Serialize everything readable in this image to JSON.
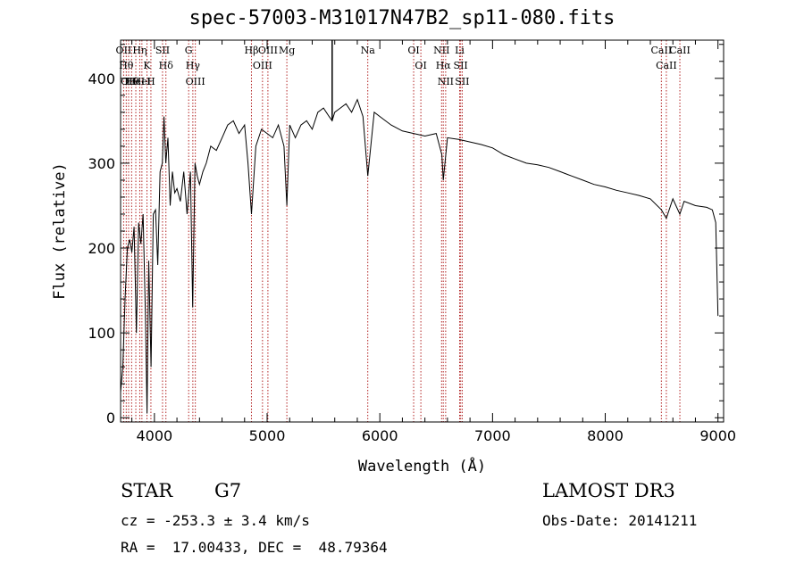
{
  "chart_data": {
    "type": "line",
    "title": "spec-57003-M31017N47B2_sp11-080.fits",
    "xlabel": "Wavelength (Å)",
    "ylabel": "Flux (relative)",
    "xlim": [
      3700,
      9050
    ],
    "ylim": [
      -5,
      445
    ],
    "xticks": [
      4000,
      5000,
      6000,
      7000,
      8000,
      9000
    ],
    "yticks": [
      0,
      100,
      200,
      300,
      400
    ],
    "series": [
      {
        "name": "flux",
        "x": [
          3700,
          3720,
          3740,
          3760,
          3780,
          3800,
          3820,
          3840,
          3860,
          3880,
          3900,
          3920,
          3935,
          3950,
          3970,
          3990,
          4010,
          4030,
          4050,
          4070,
          4085,
          4101,
          4120,
          4140,
          4160,
          4180,
          4200,
          4230,
          4260,
          4290,
          4320,
          4340,
          4360,
          4380,
          4400,
          4430,
          4460,
          4500,
          4550,
          4600,
          4650,
          4700,
          4750,
          4800,
          4830,
          4861,
          4900,
          4950,
          5000,
          5050,
          5100,
          5150,
          5175,
          5200,
          5250,
          5300,
          5350,
          5400,
          5450,
          5500,
          5550,
          5577,
          5600,
          5650,
          5700,
          5750,
          5800,
          5850,
          5893,
          5950,
          6000,
          6050,
          6100,
          6200,
          6300,
          6400,
          6500,
          6550,
          6563,
          6600,
          6700,
          6800,
          6900,
          7000,
          7100,
          7200,
          7300,
          7400,
          7500,
          7600,
          7700,
          7800,
          7900,
          8000,
          8100,
          8200,
          8300,
          8400,
          8498,
          8542,
          8600,
          8662,
          8700,
          8800,
          8900,
          8950,
          8980,
          9000
        ],
        "values": [
          30,
          60,
          140,
          200,
          210,
          195,
          225,
          100,
          230,
          205,
          240,
          120,
          5,
          185,
          60,
          240,
          245,
          180,
          290,
          300,
          355,
          300,
          330,
          250,
          290,
          265,
          270,
          255,
          290,
          240,
          290,
          130,
          300,
          285,
          275,
          290,
          300,
          320,
          315,
          330,
          345,
          350,
          335,
          345,
          300,
          240,
          320,
          340,
          335,
          330,
          345,
          320,
          250,
          345,
          330,
          345,
          350,
          340,
          360,
          365,
          355,
          350,
          360,
          365,
          370,
          360,
          375,
          355,
          285,
          360,
          355,
          350,
          345,
          338,
          335,
          332,
          335,
          310,
          280,
          330,
          328,
          325,
          322,
          318,
          310,
          305,
          300,
          298,
          295,
          290,
          285,
          280,
          275,
          272,
          268,
          265,
          262,
          258,
          245,
          235,
          258,
          240,
          255,
          250,
          248,
          245,
          230,
          120
        ]
      }
    ],
    "spike": {
      "x": 5577,
      "value": 445
    },
    "lines": [
      {
        "wave": 3727,
        "label": "OII"
      },
      {
        "wave": 3750,
        "label": "Hθ"
      },
      {
        "wave": 3771,
        "label": "OII"
      },
      {
        "wave": 3798,
        "label": "Hθ"
      },
      {
        "wave": 3835,
        "label": "HeI"
      },
      {
        "wave": 3870,
        "label": "Hη"
      },
      {
        "wave": 3889,
        "label": "HeI"
      },
      {
        "wave": 3934,
        "label": "K"
      },
      {
        "wave": 3969,
        "label": "H"
      },
      {
        "wave": 4072,
        "label": "SII"
      },
      {
        "wave": 4102,
        "label": "Hδ"
      },
      {
        "wave": 4304,
        "label": "G"
      },
      {
        "wave": 4341,
        "label": "Hγ"
      },
      {
        "wave": 4363,
        "label": "OIII"
      },
      {
        "wave": 4861,
        "label": "Hβ"
      },
      {
        "wave": 4959,
        "label": "OIII"
      },
      {
        "wave": 5007,
        "label": "OIII"
      },
      {
        "wave": 5175,
        "label": "Mg"
      },
      {
        "wave": 5893,
        "label": "Na"
      },
      {
        "wave": 6300,
        "label": "OI"
      },
      {
        "wave": 6364,
        "label": "OI"
      },
      {
        "wave": 6548,
        "label": "NII"
      },
      {
        "wave": 6563,
        "label": "Hα"
      },
      {
        "wave": 6584,
        "label": "NII"
      },
      {
        "wave": 6708,
        "label": "Li"
      },
      {
        "wave": 6717,
        "label": "SII"
      },
      {
        "wave": 6731,
        "label": "SII"
      },
      {
        "wave": 8498,
        "label": "CaII"
      },
      {
        "wave": 8542,
        "label": "CaII"
      },
      {
        "wave": 8662,
        "label": "CaII"
      }
    ]
  },
  "footer": {
    "object_class": "STAR",
    "subclass": "G7",
    "survey": "LAMOST DR3",
    "cz": "cz = -253.3 ± 3.4 km/s",
    "obs_date": "Obs-Date: 20141211",
    "coords": "RA =  17.00433, DEC =  48.79364"
  },
  "colors": {
    "axis": "#000000",
    "line": "#000000",
    "marker_line": "#b22222"
  }
}
